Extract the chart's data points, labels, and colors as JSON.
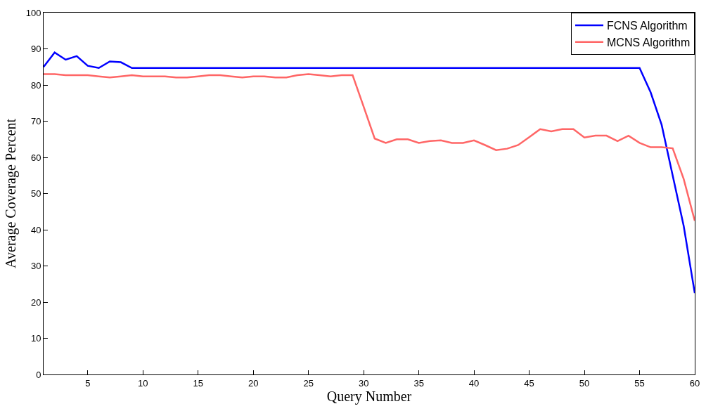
{
  "chart_data": {
    "type": "line",
    "xlabel": "Query Number",
    "ylabel": "Average Coverage Percent",
    "x": [
      1,
      2,
      3,
      4,
      5,
      6,
      7,
      8,
      9,
      10,
      11,
      12,
      13,
      14,
      15,
      16,
      17,
      18,
      19,
      20,
      21,
      22,
      23,
      24,
      25,
      26,
      27,
      28,
      29,
      30,
      31,
      32,
      33,
      34,
      35,
      36,
      37,
      38,
      39,
      40,
      41,
      42,
      43,
      44,
      45,
      46,
      47,
      48,
      49,
      50,
      51,
      52,
      53,
      54,
      55,
      56,
      57,
      58,
      59,
      60
    ],
    "series": [
      {
        "name": "FCNS Algorithm",
        "color": "#0000ff",
        "values": [
          85,
          89,
          87,
          88,
          85.3,
          84.7,
          86.5,
          86.3,
          84.7,
          84.7,
          84.7,
          84.7,
          84.7,
          84.7,
          84.7,
          84.7,
          84.7,
          84.7,
          84.7,
          84.7,
          84.7,
          84.7,
          84.7,
          84.7,
          84.7,
          84.7,
          84.7,
          84.7,
          84.7,
          84.7,
          84.7,
          84.7,
          84.7,
          84.7,
          84.7,
          84.7,
          84.7,
          84.7,
          84.7,
          84.7,
          84.7,
          84.7,
          84.7,
          84.7,
          84.7,
          84.7,
          84.7,
          84.7,
          84.7,
          84.7,
          84.7,
          84.7,
          84.7,
          84.7,
          84.7,
          78,
          69,
          55,
          41,
          22.5
        ]
      },
      {
        "name": "MCNS Algorithm",
        "color": "#ff6666",
        "values": [
          83,
          83,
          82.7,
          82.7,
          82.7,
          82.4,
          82.1,
          82.4,
          82.7,
          82.4,
          82.4,
          82.4,
          82.1,
          82.1,
          82.4,
          82.7,
          82.7,
          82.4,
          82.1,
          82.4,
          82.4,
          82.1,
          82.1,
          82.7,
          83,
          82.7,
          82.4,
          82.7,
          82.7,
          74,
          65.2,
          64,
          65,
          65,
          64,
          64.5,
          64.7,
          64,
          64,
          64.7,
          63.4,
          62,
          62.4,
          63.4,
          65.6,
          67.8,
          67.2,
          67.8,
          67.8,
          65.5,
          66,
          66,
          64.5,
          66,
          64,
          62.8,
          62.8,
          62.5,
          54,
          42.5
        ]
      }
    ],
    "xlim": [
      1,
      60
    ],
    "xticks": [
      5,
      10,
      15,
      20,
      25,
      30,
      35,
      40,
      45,
      50,
      55,
      60
    ],
    "ylim": [
      0,
      100
    ],
    "yticks": [
      0,
      10,
      20,
      30,
      40,
      50,
      60,
      70,
      80,
      90,
      100
    ],
    "legend": "top right",
    "marker": "none",
    "line_style": "solid"
  }
}
